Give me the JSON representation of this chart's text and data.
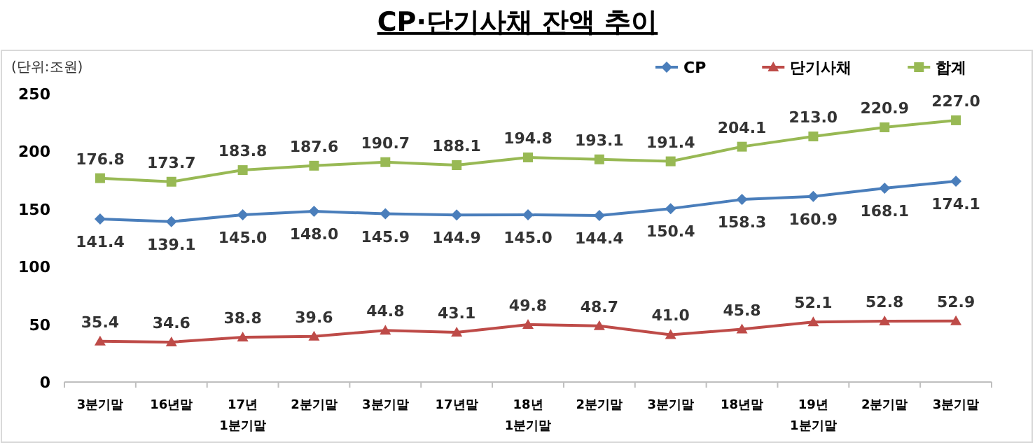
{
  "chart_data": {
    "type": "line",
    "title": "CP·단기사채 잔액 추이",
    "ylabel": "(단위:조원)",
    "categories": [
      "3분기말",
      "16년말",
      "17년\n1분기말",
      "2분기말",
      "3분기말",
      "17년말",
      "18년\n1분기말",
      "2분기말",
      "3분기말",
      "18년말",
      "19년\n1분기말",
      "2분기말",
      "3분기말"
    ],
    "series": [
      {
        "name": "CP",
        "color": "#4a7ebb",
        "marker": "diamond",
        "values": [
          141.4,
          139.1,
          145.0,
          148.0,
          145.9,
          144.9,
          145.0,
          144.4,
          150.4,
          158.3,
          160.9,
          168.1,
          174.1
        ],
        "value_labels": [
          "141.4",
          "139.1",
          "145.0",
          "148.0",
          "145.9",
          "144.9",
          "145.0",
          "144.4",
          "150.4",
          "158.3",
          "160.9",
          "168.1",
          "174.1"
        ]
      },
      {
        "name": "단기사채",
        "color": "#be4b48",
        "marker": "triangle",
        "values": [
          35.4,
          34.6,
          38.8,
          39.6,
          44.8,
          43.1,
          49.8,
          48.7,
          41.0,
          45.8,
          52.1,
          52.8,
          52.9
        ],
        "value_labels": [
          "35.4",
          "34.6",
          "38.8",
          "39.6",
          "44.8",
          "43.1",
          "49.8",
          "48.7",
          "41.0",
          "45.8",
          "52.1",
          "52.8",
          "52.9"
        ]
      },
      {
        "name": "합계",
        "color": "#98b954",
        "marker": "square",
        "values": [
          176.8,
          173.7,
          183.8,
          187.6,
          190.7,
          188.1,
          194.8,
          193.1,
          191.4,
          204.1,
          213.0,
          220.9,
          227.0
        ],
        "value_labels": [
          "176.8",
          "173.7",
          "183.8",
          "187.6",
          "190.7",
          "188.1",
          "194.8",
          "193.1",
          "191.4",
          "204.1",
          "213.0",
          "220.9",
          "227.0"
        ]
      }
    ],
    "ylim": [
      0,
      250
    ],
    "yticks": [
      0,
      50,
      100,
      150,
      200,
      250
    ],
    "legend": "top right",
    "grid": false
  }
}
